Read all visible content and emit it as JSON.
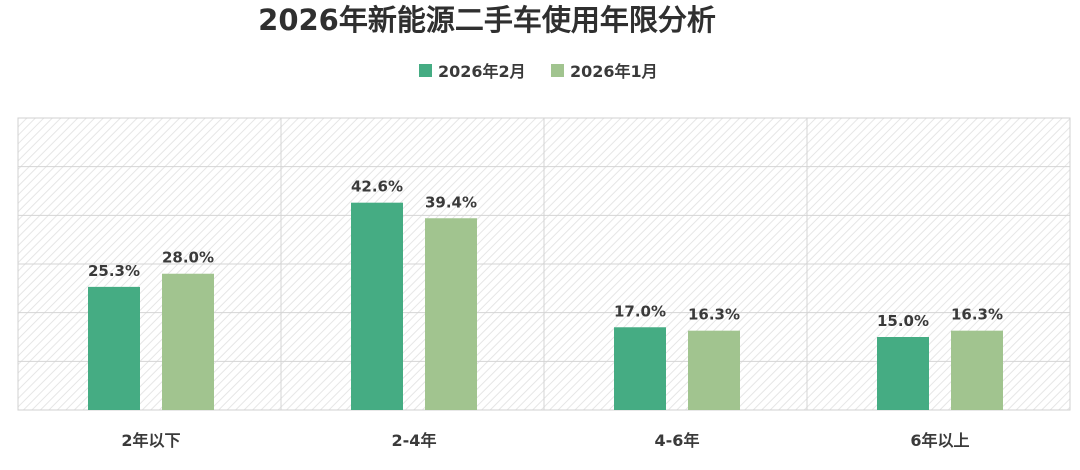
{
  "chart_data": {
    "type": "bar",
    "title": "2026年新能源二手车使用年限分析",
    "categories": [
      "2年以下",
      "2-4年",
      "4-6年",
      "6年以上"
    ],
    "series": [
      {
        "name": "2026年2月",
        "values": [
          25.3,
          42.6,
          17.0,
          15.0
        ],
        "labels": [
          "25.3%",
          "42.6%",
          "17.0%",
          "15.0%"
        ],
        "color": "#45ac83"
      },
      {
        "name": "2026年1月",
        "values": [
          28.0,
          39.4,
          16.3,
          16.3
        ],
        "labels": [
          "28.0%",
          "39.4%",
          "16.3%",
          "16.3%"
        ],
        "color": "#a1c48f"
      }
    ],
    "ylim": [
      0,
      60
    ],
    "unit": "%",
    "grid": true,
    "legend_position": "top-center",
    "plot_background": "diagonal-hatch"
  }
}
